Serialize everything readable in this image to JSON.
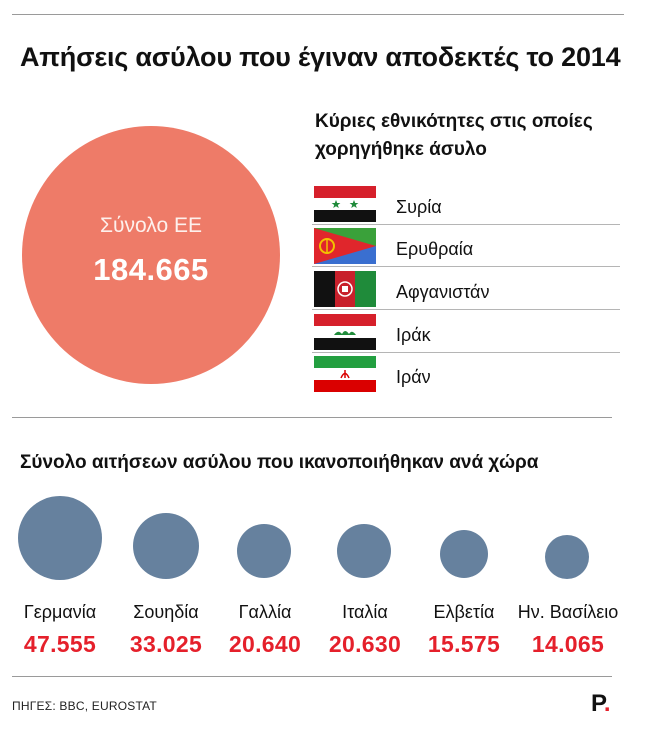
{
  "title": "Απήσεις ασύλου που έγιναν αποδεκτές το 2014",
  "total": {
    "label": "Σύνολο ΕΕ",
    "value": "184.665",
    "color": "#ee7b68"
  },
  "nationalities": {
    "title_line1": "Κύριες εθνικότητες στις οποίες",
    "title_line2": "χορηγήθηκε άσυλο",
    "items": [
      {
        "name": "Συρία",
        "flag": "syria-flag"
      },
      {
        "name": "Ερυθραία",
        "flag": "eritrea-flag"
      },
      {
        "name": "Αφγανιστάν",
        "flag": "afghanistan-flag"
      },
      {
        "name": "Ιράκ",
        "flag": "iraq-flag"
      },
      {
        "name": "Ιράν",
        "flag": "iran-flag"
      }
    ]
  },
  "by_country": {
    "title": "Σύνολο αιτήσεων ασύλου που ικανοποιήθηκαν ανά χώρα",
    "bubble_color": "#66819e",
    "value_color": "#e5202b",
    "countries": [
      {
        "name": "Γερμανία",
        "value": "47.555",
        "amount": 47555
      },
      {
        "name": "Σουηδία",
        "value": "33.025",
        "amount": 33025
      },
      {
        "name": "Γαλλία",
        "value": "20.640",
        "amount": 20640
      },
      {
        "name": "Ιταλία",
        "value": "20.630",
        "amount": 20630
      },
      {
        "name": "Ελβετία",
        "value": "15.575",
        "amount": 15575
      },
      {
        "name": "Ην. Βασίλειο",
        "value": "14.065",
        "amount": 14065
      }
    ]
  },
  "sources": "ΠΗΓΕΣ: BBC, EUROSTAT",
  "logo": {
    "letter": "P",
    "dot": "."
  }
}
